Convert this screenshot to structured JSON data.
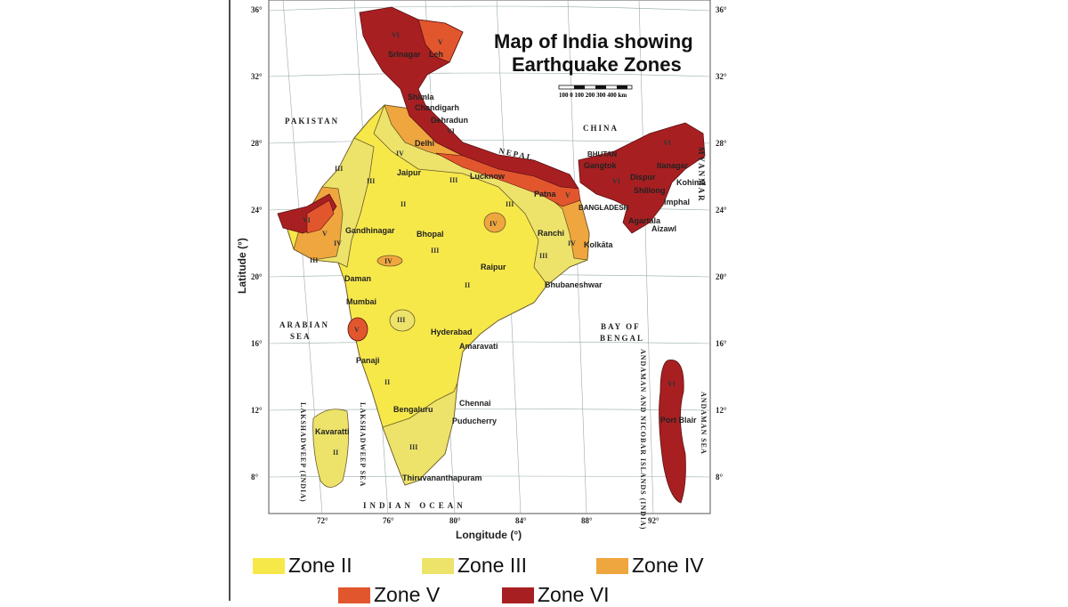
{
  "title_line1": "Map of India showing",
  "title_line2": "Earthquake Zones",
  "scale_label": "100 0   100 200 300 400  km",
  "xlabel": "Longitude (°)",
  "ylabel": "Latitude (°)",
  "lat_ticks": [
    "36°",
    "32°",
    "28°",
    "24°",
    "20°",
    "16°",
    "12°",
    "8°"
  ],
  "lon_ticks": [
    "72°",
    "76°",
    "80°",
    "84°",
    "88°",
    "92°"
  ],
  "countries": {
    "pakistan": "PAKISTAN",
    "china": "CHINA",
    "nepal": "NEPAL",
    "bhutan": "BHUTAN",
    "bangladesh": "BANGLADESH",
    "myanmar": "MYANMAR"
  },
  "seas": {
    "arabian1": "ARABIAN",
    "arabian2": "SEA",
    "bay1": "BAY OF",
    "bay2": "BENGAL",
    "indian_ocean": "INDIAN   OCEAN",
    "lakshadweep_sea": "LAKSHADWEEP SEA",
    "lakshadweep_india": "LAKSHADWEEP (INDIA)",
    "andaman_nicobar": "ANDAMAN AND NICOBAR ISLANDS (INDIA)",
    "andaman_sea": "ANDAMAN SEA"
  },
  "cities": {
    "srinagar": "Srinagar",
    "leh": "Leh",
    "shimla": "Shimla",
    "chandigarh": "Chandigarh",
    "dehradun": "Dehradun",
    "delhi": "Delhi",
    "jaipur": "Jaipur",
    "lucknow": "Lucknow",
    "patna": "Patna",
    "gangtok": "Gangtok",
    "itanagar": "Itanagar",
    "dispur": "Dispur",
    "kohima": "Kohima",
    "shillong": "Shillong",
    "imphal": "Imphal",
    "agartala": "Agartala",
    "aizawl": "Aizawl",
    "kolkata": "Kolkāta",
    "ranchi": "Ranchi",
    "gandhinagar": "Gandhinagar",
    "bhopal": "Bhopal",
    "raipur": "Raipur",
    "bhubaneshwar": "Bhubaneshwar",
    "daman": "Daman",
    "mumbai": "Mumbai",
    "hyderabad": "Hyderabad",
    "amaravati": "Amaravati",
    "panaji": "Panaji",
    "chennai": "Chennai",
    "bengaluru": "Bengaluru",
    "puducherry": "Puducherry",
    "thiruvananthapuram": "Thiruvananthapuram",
    "kavaratti": "Kavaratti",
    "port_blair": "Port Blair"
  },
  "zone_marks": {
    "ii": "II",
    "iii": "III",
    "iv": "IV",
    "v": "V",
    "vi": "VI"
  },
  "legend": [
    {
      "label": "Zone II",
      "color": "#f7e84a"
    },
    {
      "label": "Zone III",
      "color": "#ede36a"
    },
    {
      "label": "Zone IV",
      "color": "#f0a63e"
    },
    {
      "label": "Zone V",
      "color": "#e2562e"
    },
    {
      "label": "Zone VI",
      "color": "#a81f22"
    }
  ]
}
